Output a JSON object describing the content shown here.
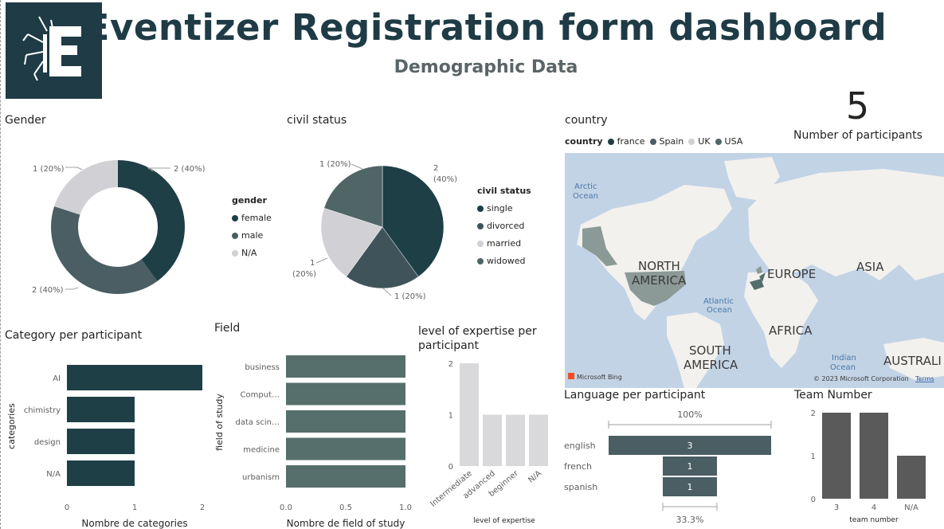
{
  "header": {
    "title": "Eventizer Registration form dashboard",
    "subtitle": "Demographic Data"
  },
  "colors": {
    "dark": "#1f3f47",
    "mid": "#4a5e63",
    "light": "#d1d1d5",
    "slate": "#506a6c",
    "teal": "#566f6c",
    "gray": "#d9d9dc",
    "team": "#5a5a5a"
  },
  "gender": {
    "title": "Gender",
    "legend_title": "gender",
    "items": [
      {
        "label": "female",
        "value": 2,
        "text": "2 (40%)",
        "color": "#1f3f47"
      },
      {
        "label": "male",
        "value": 2,
        "text": "2 (40%)",
        "color": "#4a5e63"
      },
      {
        "label": "N/A",
        "value": 1,
        "text": "1 (20%)",
        "color": "#d1d1d5"
      }
    ]
  },
  "civil": {
    "title": "civil status",
    "legend_title": "civil status",
    "items": [
      {
        "label": "single",
        "value": 2,
        "text": "2 (40%)",
        "color": "#1f3f47"
      },
      {
        "label": "divorced",
        "value": 1,
        "text": "1 (20%)",
        "color": "#3f545a"
      },
      {
        "label": "married",
        "value": 1,
        "text": "1 (20%)",
        "color": "#d1d1d5"
      },
      {
        "label": "widowed",
        "value": 1,
        "text": "1 (20%)",
        "color": "#4f6566"
      }
    ],
    "label_single_a": "2",
    "label_single_b": "(40%)",
    "label_left_a": "1",
    "label_left_b": "(20%)",
    "label_top": "1 (20%)",
    "label_bottom": "1 (20%)"
  },
  "country": {
    "title": "country",
    "legend_title": "country",
    "items": [
      {
        "label": "france",
        "color": "#1f3f47"
      },
      {
        "label": "Spain",
        "color": "#4a5e63"
      },
      {
        "label": "UK",
        "color": "#d1d1d5"
      },
      {
        "label": "USA",
        "color": "#4f6566"
      }
    ],
    "map_labels": {
      "arctic_a": "Arctic",
      "arctic_b": "Ocean",
      "north_a": "NORTH",
      "north_b": "AMERICA",
      "europe": "EUROPE",
      "asia": "ASIA",
      "atlantic_a": "Atlantic",
      "atlantic_b": "Ocean",
      "africa": "AFRICA",
      "south_a": "SOUTH",
      "south_b": "AMERICA",
      "indian_a": "Indian",
      "indian_b": "Ocean",
      "australia": "AUSTRALI",
      "bing": "Microsoft Bing",
      "copyright": "© 2023 Microsoft Corporation",
      "terms": "Terms"
    }
  },
  "kpi": {
    "value": "5",
    "label": "Number of participants"
  },
  "category": {
    "title": "Category per participant",
    "ylabel": "categories",
    "xlabel": "Nombre de categories",
    "categories": [
      "AI",
      "chimistry",
      "design",
      "N/A"
    ],
    "values": [
      2,
      1,
      1,
      1
    ],
    "ticks": [
      "0",
      "1",
      "2"
    ]
  },
  "field": {
    "title": "Field",
    "ylabel": "field of study",
    "xlabel": "Nombre de field of study",
    "categories": [
      "business",
      "Comput…",
      "data scin…",
      "medicine",
      "urbanism"
    ],
    "values": [
      1,
      1,
      1,
      1,
      1
    ],
    "ticks": [
      "0.0",
      "0.5",
      "1.0"
    ]
  },
  "expertise": {
    "title_a": "level of expertise per",
    "title_b": "participant",
    "xlabel": "level of expertise",
    "categories": [
      "Intermediate",
      "advanced",
      "beginner",
      "N/A"
    ],
    "values": [
      2,
      1,
      1,
      1
    ],
    "ticks": [
      "0",
      "1",
      "2"
    ]
  },
  "language": {
    "title": "Language per participant",
    "top_pct": "100%",
    "bottom_pct": "33.3%",
    "categories": [
      "english",
      "french",
      "spanish"
    ],
    "values": [
      3,
      1,
      1
    ],
    "value_labels": [
      "3",
      "1",
      "1"
    ]
  },
  "team": {
    "title": "Team Number",
    "xlabel": "team number",
    "categories": [
      "3",
      "4",
      "N/A"
    ],
    "values": [
      2,
      2,
      1
    ],
    "ticks": [
      "0",
      "1",
      "2"
    ]
  },
  "chart_data": [
    {
      "type": "pie",
      "title": "Gender",
      "categories": [
        "female",
        "male",
        "N/A"
      ],
      "values": [
        2,
        2,
        1
      ]
    },
    {
      "type": "pie",
      "title": "civil status",
      "categories": [
        "single",
        "divorced",
        "married",
        "widowed"
      ],
      "values": [
        2,
        1,
        1,
        1
      ]
    },
    {
      "type": "bar",
      "title": "Category per participant",
      "categories": [
        "AI",
        "chimistry",
        "design",
        "N/A"
      ],
      "values": [
        2,
        1,
        1,
        1
      ],
      "xlabel": "Nombre de categories",
      "ylabel": "categories",
      "xlim": [
        0,
        2
      ]
    },
    {
      "type": "bar",
      "title": "Field",
      "categories": [
        "business",
        "Comput…",
        "data scin…",
        "medicine",
        "urbanism"
      ],
      "values": [
        1,
        1,
        1,
        1,
        1
      ],
      "xlabel": "Nombre de field of study",
      "ylabel": "field of study",
      "xlim": [
        0,
        1
      ]
    },
    {
      "type": "bar",
      "title": "level of expertise per participant",
      "categories": [
        "Intermediate",
        "advanced",
        "beginner",
        "N/A"
      ],
      "values": [
        2,
        1,
        1,
        1
      ],
      "xlabel": "level of expertise",
      "ylim": [
        0,
        2
      ]
    },
    {
      "type": "bar",
      "title": "Language per participant",
      "categories": [
        "english",
        "french",
        "spanish"
      ],
      "values": [
        3,
        1,
        1
      ]
    },
    {
      "type": "bar",
      "title": "Team Number",
      "categories": [
        "3",
        "4",
        "N/A"
      ],
      "values": [
        2,
        2,
        1
      ],
      "xlabel": "team number",
      "ylim": [
        0,
        2
      ]
    }
  ]
}
